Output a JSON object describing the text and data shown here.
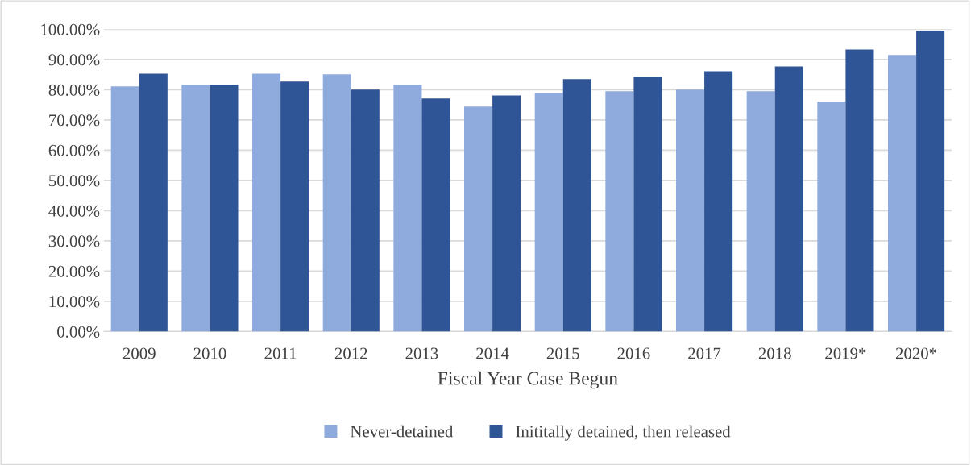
{
  "chart_data": {
    "type": "bar",
    "xlabel": "Fiscal Year Case Begun",
    "categories": [
      "2009",
      "2010",
      "2011",
      "2012",
      "2013",
      "2014",
      "2015",
      "2016",
      "2017",
      "2018",
      "2019*",
      "2020*"
    ],
    "series": [
      {
        "name": "Never-detained",
        "color": "#8faadc",
        "values": [
          81.1,
          81.6,
          85.3,
          85.1,
          81.6,
          74.4,
          78.9,
          79.5,
          80.0,
          79.5,
          76.0,
          91.5
        ]
      },
      {
        "name": "Inititally detained, then released",
        "color": "#2f5597",
        "values": [
          85.3,
          81.6,
          82.7,
          80.0,
          77.1,
          78.1,
          83.5,
          84.3,
          86.1,
          87.7,
          93.3,
          99.5
        ]
      }
    ],
    "ylim": [
      0,
      100
    ],
    "yticks": [
      {
        "value": 0,
        "label": "0.00%"
      },
      {
        "value": 10,
        "label": "10.00%"
      },
      {
        "value": 20,
        "label": "20.00%"
      },
      {
        "value": 30,
        "label": "30.00%"
      },
      {
        "value": 40,
        "label": "40.00%"
      },
      {
        "value": 50,
        "label": "50.00%"
      },
      {
        "value": 60,
        "label": "60.00%"
      },
      {
        "value": 70,
        "label": "70.00%"
      },
      {
        "value": 80,
        "label": "80.00%"
      },
      {
        "value": 90,
        "label": "90.00%"
      },
      {
        "value": 100,
        "label": "100.00%"
      }
    ],
    "grid": "y",
    "legend": "bottom"
  }
}
